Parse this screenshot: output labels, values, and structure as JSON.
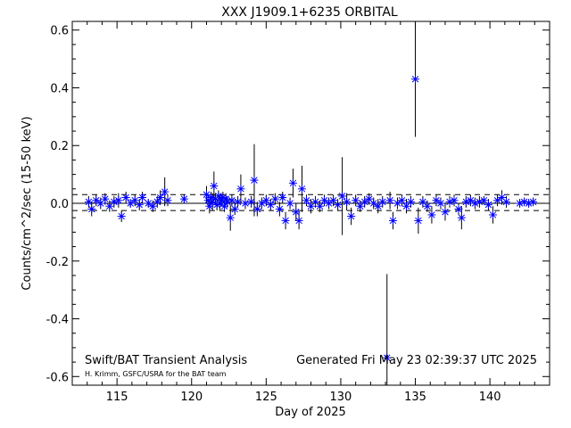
{
  "chart_data": {
    "type": "scatter",
    "title": "XXX J1909.1+6235 ORBITAL",
    "xlabel": "Day of 2025",
    "ylabel": "Counts/cm^2/sec (15-50 keV)",
    "xlim": [
      112.0,
      144.0
    ],
    "ylim": [
      -0.63,
      0.63
    ],
    "x_ticks": [
      115,
      120,
      125,
      130,
      135,
      140
    ],
    "x_tick_labels": [
      "115",
      "120",
      "125",
      "130",
      "135",
      "140"
    ],
    "y_ticks": [
      -0.6,
      -0.4,
      -0.2,
      0.0,
      0.2,
      0.4,
      0.6
    ],
    "y_tick_labels": [
      "-0.6",
      "-0.4",
      "-0.2",
      "0.0",
      "0.2",
      "0.4",
      "0.6"
    ],
    "reference_lines": {
      "zero": 0.0,
      "upper_dashed": 0.03,
      "lower_dashed": -0.025
    },
    "marker": "asterisk",
    "marker_color": "#0000ff",
    "footer_left": "Swift/BAT Transient Analysis",
    "footer_credit": "H. Krimm, GSFC/USRA for the BAT team",
    "footer_right": "Generated Fri May 23 02:39:37 UTC 2025",
    "series": [
      {
        "points": [
          {
            "x": 113.1,
            "y": 0.005,
            "err": 0.02
          },
          {
            "x": 113.3,
            "y": -0.02,
            "err": 0.025
          },
          {
            "x": 113.6,
            "y": 0.01,
            "err": 0.02
          },
          {
            "x": 113.9,
            "y": 0.0,
            "err": 0.02
          },
          {
            "x": 114.2,
            "y": 0.015,
            "err": 0.02
          },
          {
            "x": 114.5,
            "y": -0.01,
            "err": 0.02
          },
          {
            "x": 114.8,
            "y": 0.005,
            "err": 0.02
          },
          {
            "x": 115.1,
            "y": 0.01,
            "err": 0.025
          },
          {
            "x": 115.3,
            "y": -0.045,
            "err": 0.02
          },
          {
            "x": 115.6,
            "y": 0.02,
            "err": 0.02
          },
          {
            "x": 115.9,
            "y": 0.0,
            "err": 0.015
          },
          {
            "x": 116.2,
            "y": 0.01,
            "err": 0.02
          },
          {
            "x": 116.5,
            "y": -0.005,
            "err": 0.02
          },
          {
            "x": 116.7,
            "y": 0.02,
            "err": 0.02
          },
          {
            "x": 117.1,
            "y": 0.0,
            "err": 0.015
          },
          {
            "x": 117.4,
            "y": -0.01,
            "err": 0.02
          },
          {
            "x": 117.7,
            "y": 0.005,
            "err": 0.02
          },
          {
            "x": 117.9,
            "y": 0.02,
            "err": 0.025
          },
          {
            "x": 118.2,
            "y": 0.04,
            "err": 0.05
          },
          {
            "x": 118.4,
            "y": 0.01,
            "err": 0.02
          },
          {
            "x": 119.5,
            "y": 0.015,
            "err": 0.015
          },
          {
            "x": 121.0,
            "y": 0.03,
            "err": 0.03
          },
          {
            "x": 121.1,
            "y": 0.01,
            "err": 0.02
          },
          {
            "x": 121.2,
            "y": -0.01,
            "err": 0.025
          },
          {
            "x": 121.3,
            "y": 0.02,
            "err": 0.02
          },
          {
            "x": 121.4,
            "y": 0.005,
            "err": 0.03
          },
          {
            "x": 121.5,
            "y": 0.06,
            "err": 0.05
          },
          {
            "x": 121.6,
            "y": 0.015,
            "err": 0.02
          },
          {
            "x": 121.7,
            "y": -0.005,
            "err": 0.02
          },
          {
            "x": 121.8,
            "y": 0.025,
            "err": 0.02
          },
          {
            "x": 121.9,
            "y": 0.0,
            "err": 0.025
          },
          {
            "x": 122.0,
            "y": 0.01,
            "err": 0.02
          },
          {
            "x": 122.1,
            "y": 0.02,
            "err": 0.02
          },
          {
            "x": 122.2,
            "y": -0.01,
            "err": 0.02
          },
          {
            "x": 122.3,
            "y": 0.015,
            "err": 0.02
          },
          {
            "x": 122.4,
            "y": 0.005,
            "err": 0.02
          },
          {
            "x": 122.6,
            "y": -0.05,
            "err": 0.045
          },
          {
            "x": 122.7,
            "y": 0.01,
            "err": 0.02
          },
          {
            "x": 122.9,
            "y": -0.02,
            "err": 0.02
          },
          {
            "x": 123.1,
            "y": 0.005,
            "err": 0.02
          },
          {
            "x": 123.3,
            "y": 0.05,
            "err": 0.05
          },
          {
            "x": 123.6,
            "y": 0.0,
            "err": 0.02
          },
          {
            "x": 124.0,
            "y": 0.005,
            "err": 0.02
          },
          {
            "x": 124.2,
            "y": 0.08,
            "err": 0.125
          },
          {
            "x": 124.4,
            "y": -0.02,
            "err": 0.025
          },
          {
            "x": 124.7,
            "y": 0.0,
            "err": 0.02
          },
          {
            "x": 125.0,
            "y": 0.01,
            "err": 0.02
          },
          {
            "x": 125.3,
            "y": -0.005,
            "err": 0.02
          },
          {
            "x": 125.6,
            "y": 0.015,
            "err": 0.02
          },
          {
            "x": 125.9,
            "y": -0.02,
            "err": 0.025
          },
          {
            "x": 126.1,
            "y": 0.02,
            "err": 0.02
          },
          {
            "x": 126.3,
            "y": -0.06,
            "err": 0.03
          },
          {
            "x": 126.6,
            "y": 0.0,
            "err": 0.02
          },
          {
            "x": 126.8,
            "y": 0.07,
            "err": 0.05
          },
          {
            "x": 127.0,
            "y": -0.03,
            "err": 0.03
          },
          {
            "x": 127.2,
            "y": -0.06,
            "err": 0.03
          },
          {
            "x": 127.4,
            "y": 0.05,
            "err": 0.08
          },
          {
            "x": 127.7,
            "y": 0.01,
            "err": 0.02
          },
          {
            "x": 128.0,
            "y": -0.01,
            "err": 0.025
          },
          {
            "x": 128.3,
            "y": 0.005,
            "err": 0.02
          },
          {
            "x": 128.6,
            "y": -0.01,
            "err": 0.02
          },
          {
            "x": 128.9,
            "y": 0.01,
            "err": 0.02
          },
          {
            "x": 129.2,
            "y": 0.0,
            "err": 0.02
          },
          {
            "x": 129.5,
            "y": 0.01,
            "err": 0.02
          },
          {
            "x": 129.8,
            "y": -0.005,
            "err": 0.02
          },
          {
            "x": 130.1,
            "y": 0.025,
            "err": 0.135
          },
          {
            "x": 130.4,
            "y": 0.005,
            "err": 0.03
          },
          {
            "x": 130.7,
            "y": -0.045,
            "err": 0.03
          },
          {
            "x": 131.0,
            "y": 0.01,
            "err": 0.02
          },
          {
            "x": 131.3,
            "y": -0.01,
            "err": 0.02
          },
          {
            "x": 131.6,
            "y": 0.005,
            "err": 0.02
          },
          {
            "x": 131.9,
            "y": 0.015,
            "err": 0.02
          },
          {
            "x": 132.2,
            "y": 0.0,
            "err": 0.02
          },
          {
            "x": 132.5,
            "y": -0.01,
            "err": 0.025
          },
          {
            "x": 132.8,
            "y": 0.005,
            "err": 0.02
          },
          {
            "x": 133.1,
            "y": -0.535,
            "err": 0.29
          },
          {
            "x": 133.3,
            "y": 0.01,
            "err": 0.03
          },
          {
            "x": 133.5,
            "y": -0.06,
            "err": 0.03
          },
          {
            "x": 133.8,
            "y": 0.0,
            "err": 0.02
          },
          {
            "x": 134.1,
            "y": 0.01,
            "err": 0.02
          },
          {
            "x": 134.4,
            "y": -0.01,
            "err": 0.025
          },
          {
            "x": 134.7,
            "y": 0.005,
            "err": 0.02
          },
          {
            "x": 135.0,
            "y": 0.43,
            "err": 0.2
          },
          {
            "x": 135.2,
            "y": -0.06,
            "err": 0.045
          },
          {
            "x": 135.5,
            "y": 0.005,
            "err": 0.02
          },
          {
            "x": 135.8,
            "y": -0.01,
            "err": 0.02
          },
          {
            "x": 136.1,
            "y": -0.04,
            "err": 0.03
          },
          {
            "x": 136.4,
            "y": 0.01,
            "err": 0.02
          },
          {
            "x": 136.7,
            "y": 0.0,
            "err": 0.02
          },
          {
            "x": 137.0,
            "y": -0.03,
            "err": 0.03
          },
          {
            "x": 137.3,
            "y": 0.005,
            "err": 0.02
          },
          {
            "x": 137.6,
            "y": 0.01,
            "err": 0.02
          },
          {
            "x": 137.9,
            "y": -0.02,
            "err": 0.02
          },
          {
            "x": 138.1,
            "y": -0.05,
            "err": 0.04
          },
          {
            "x": 138.4,
            "y": 0.005,
            "err": 0.02
          },
          {
            "x": 138.7,
            "y": 0.01,
            "err": 0.02
          },
          {
            "x": 139.0,
            "y": 0.0,
            "err": 0.02
          },
          {
            "x": 139.3,
            "y": 0.005,
            "err": 0.02
          },
          {
            "x": 139.6,
            "y": 0.01,
            "err": 0.015
          },
          {
            "x": 139.9,
            "y": -0.005,
            "err": 0.02
          },
          {
            "x": 140.2,
            "y": -0.04,
            "err": 0.03
          },
          {
            "x": 140.5,
            "y": 0.01,
            "err": 0.02
          },
          {
            "x": 140.8,
            "y": 0.02,
            "err": 0.025
          },
          {
            "x": 141.1,
            "y": 0.005,
            "err": 0.02
          },
          {
            "x": 142.0,
            "y": 0.0,
            "err": 0.015
          },
          {
            "x": 142.3,
            "y": 0.005,
            "err": 0.015
          },
          {
            "x": 142.6,
            "y": 0.0,
            "err": 0.015
          },
          {
            "x": 142.9,
            "y": 0.005,
            "err": 0.015
          }
        ]
      }
    ]
  }
}
